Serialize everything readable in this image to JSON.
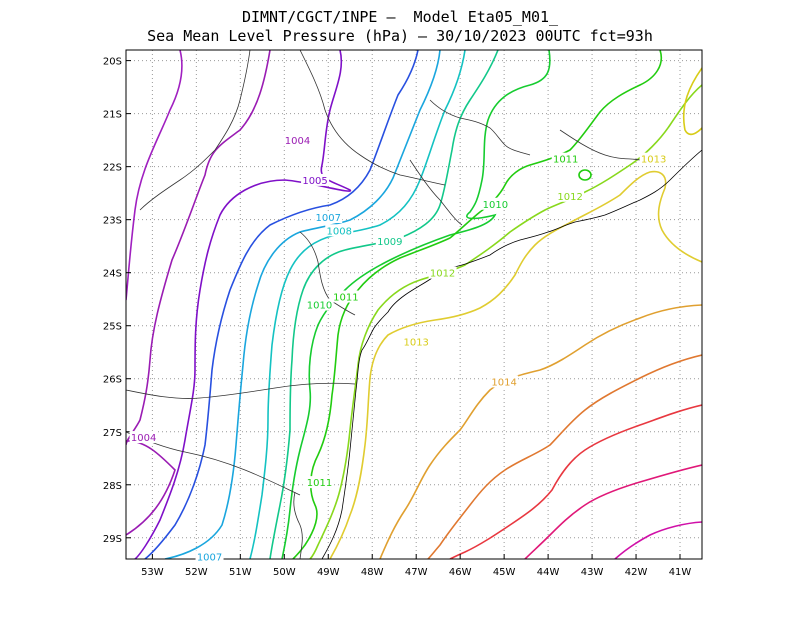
{
  "header": {
    "line1": "DIMNT/CGCT/INPE –  Model Eta05_M01_",
    "line2": "Sea Mean Level Pressure (hPa) – 30/10/2023 00UTC fct=93h"
  },
  "chart_data": {
    "type": "contour",
    "variable": "Sea Mean Level Pressure (hPa)",
    "model": "Eta05_M01_",
    "init": "30/10/2023 00UTC",
    "forecast_hour": "fct=93h",
    "lon_range": [
      -53.6,
      -40.5
    ],
    "lat_range": [
      -29.4,
      -19.8
    ],
    "x_ticks": [
      "53W",
      "52W",
      "51W",
      "50W",
      "49W",
      "48W",
      "47W",
      "46W",
      "45W",
      "44W",
      "43W",
      "42W",
      "41W"
    ],
    "y_ticks": [
      "20S",
      "21S",
      "22S",
      "23S",
      "24S",
      "25S",
      "26S",
      "27S",
      "28S",
      "29S"
    ],
    "grid": true,
    "contour_labels": [
      {
        "text": "1004",
        "lon": -49.7,
        "lat": -21.5,
        "color": "#9a1cb3"
      },
      {
        "text": "1005",
        "lon": -49.3,
        "lat": -22.25,
        "color": "#7f10c8"
      },
      {
        "text": "1007",
        "lon": -49.0,
        "lat": -22.95,
        "color": "#1aa6de"
      },
      {
        "text": "1008",
        "lon": -48.75,
        "lat": -23.2,
        "color": "#14c2c2"
      },
      {
        "text": "1009",
        "lon": -47.6,
        "lat": -23.4,
        "color": "#12c88a"
      },
      {
        "text": "1010",
        "lon": -45.2,
        "lat": -22.7,
        "color": "#16cc30"
      },
      {
        "text": "1011",
        "lon": -43.6,
        "lat": -21.85,
        "color": "#22cc10"
      },
      {
        "text": "1012",
        "lon": -43.5,
        "lat": -22.55,
        "color": "#88d81c"
      },
      {
        "text": "1013",
        "lon": -41.6,
        "lat": -21.85,
        "color": "#d8cc18"
      },
      {
        "text": "1010",
        "lon": -49.2,
        "lat": -24.6,
        "color": "#16cc30"
      },
      {
        "text": "1011",
        "lon": -48.6,
        "lat": -24.45,
        "color": "#22cc10"
      },
      {
        "text": "1012",
        "lon": -46.4,
        "lat": -24.0,
        "color": "#88d81c"
      },
      {
        "text": "1013",
        "lon": -47.0,
        "lat": -25.3,
        "color": "#d8cc18"
      },
      {
        "text": "1014",
        "lon": -45.0,
        "lat": -26.05,
        "color": "#e0a030"
      },
      {
        "text": "1004",
        "lon": -53.2,
        "lat": -27.1,
        "color": "#9a1cb3"
      },
      {
        "text": "1011",
        "lon": -49.2,
        "lat": -27.95,
        "color": "#22cc10"
      },
      {
        "text": "1007",
        "lon": -51.7,
        "lat": -29.35,
        "color": "#1aa6de"
      }
    ]
  }
}
